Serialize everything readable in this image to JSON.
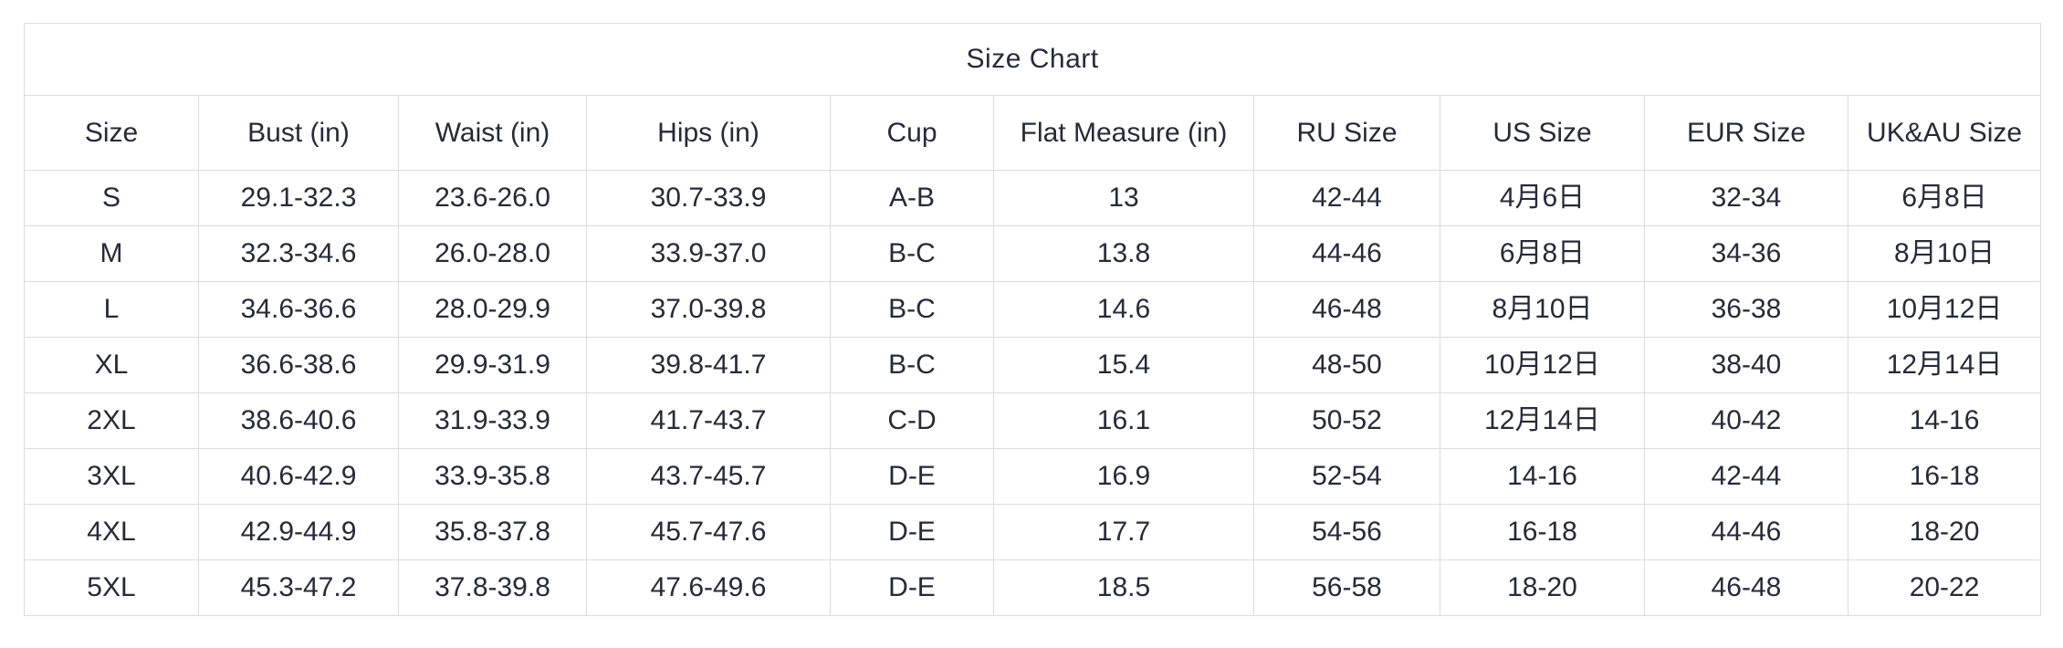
{
  "page": {
    "background": "#ffffff"
  },
  "colors": {
    "text": "#252b37",
    "border": "#dadce2",
    "table_background": "#ffffff"
  },
  "chart_data": {
    "type": "table",
    "title": "Size Chart",
    "columns": [
      "Size",
      "Bust (in)",
      "Waist (in)",
      "Hips (in)",
      "Cup",
      "Flat Measure (in)",
      "RU Size",
      "US Size",
      "EUR Size",
      "UK&AU Size"
    ],
    "rows": [
      [
        "S",
        "29.1-32.3",
        "23.6-26.0",
        "30.7-33.9",
        "A-B",
        "13",
        "42-44",
        "4月6日",
        "32-34",
        "6月8日"
      ],
      [
        "M",
        "32.3-34.6",
        "26.0-28.0",
        "33.9-37.0",
        "B-C",
        "13.8",
        "44-46",
        "6月8日",
        "34-36",
        "8月10日"
      ],
      [
        "L",
        "34.6-36.6",
        "28.0-29.9",
        "37.0-39.8",
        "B-C",
        "14.6",
        "46-48",
        "8月10日",
        "36-38",
        "10月12日"
      ],
      [
        "XL",
        "36.6-38.6",
        "29.9-31.9",
        "39.8-41.7",
        "B-C",
        "15.4",
        "48-50",
        "10月12日",
        "38-40",
        "12月14日"
      ],
      [
        "2XL",
        "38.6-40.6",
        "31.9-33.9",
        "41.7-43.7",
        "C-D",
        "16.1",
        "50-52",
        "12月14日",
        "40-42",
        "14-16"
      ],
      [
        "3XL",
        "40.6-42.9",
        "33.9-35.8",
        "43.7-45.7",
        "D-E",
        "16.9",
        "52-54",
        "14-16",
        "42-44",
        "16-18"
      ],
      [
        "4XL",
        "42.9-44.9",
        "35.8-37.8",
        "45.7-47.6",
        "D-E",
        "17.7",
        "54-56",
        "16-18",
        "44-46",
        "18-20"
      ],
      [
        "5XL",
        "45.3-47.2",
        "37.8-39.8",
        "47.6-49.6",
        "D-E",
        "18.5",
        "56-58",
        "18-20",
        "46-48",
        "20-22"
      ]
    ]
  }
}
